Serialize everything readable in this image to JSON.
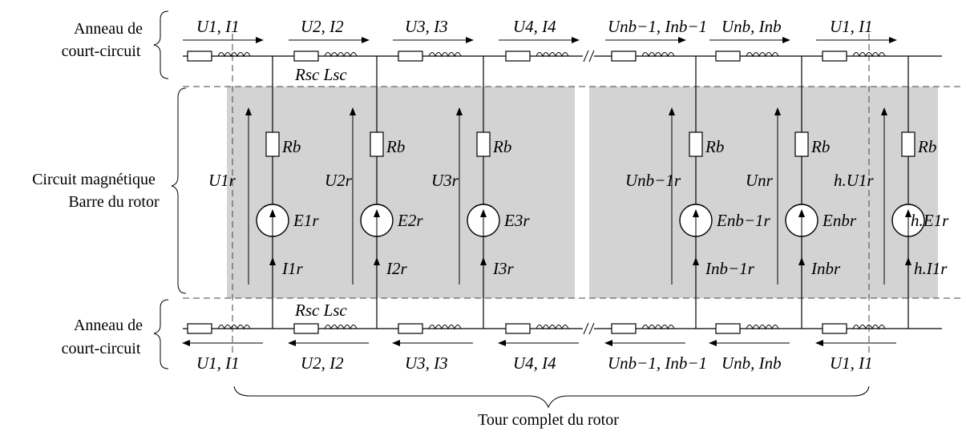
{
  "side_labels": {
    "top_ring_line1": "Anneau de",
    "top_ring_line2": "court-circuit",
    "core_line1": "Circuit magnétique",
    "core_line2": "Barre du rotor",
    "bottom_ring_line1": "Anneau de",
    "bottom_ring_line2": "court-circuit"
  },
  "bottom_caption": "Tour complet du rotor",
  "top_ring_labels": [
    "U1, I1",
    "U2, I2",
    "U3, I3",
    "U4, I4",
    "Unb−1, Inb−1",
    "Unb, Inb",
    "U1, I1"
  ],
  "bottom_ring_labels": [
    "U1, I1",
    "U2, I2",
    "U3, I3",
    "U4, I4",
    "Unb−1, Inb−1",
    "Unb, Inb",
    "U1, I1"
  ],
  "ring_element_labels": {
    "top": "Rsc Lsc",
    "bottom": "Rsc Lsc"
  },
  "bars": [
    {
      "r": "Rb",
      "u": "U1r",
      "e": "E1r",
      "i": "I1r"
    },
    {
      "r": "Rb",
      "u": "U2r",
      "e": "E2r",
      "i": "I2r"
    },
    {
      "r": "Rb",
      "u": "U3r",
      "e": "E3r",
      "i": "I3r"
    },
    {
      "r": "Rb",
      "u": "Unb−1r",
      "e": "Enb−1r",
      "i": "Inb−1r"
    },
    {
      "r": "Rb",
      "u": "Unr",
      "e": "Enbr",
      "i": "Inbr"
    },
    {
      "r": "Rb",
      "u": "h.U1r",
      "e": "h.E1r",
      "i": "h.I1r"
    }
  ],
  "colors": {
    "core_fill": "#d3d3d3",
    "line": "#000000",
    "background": "#ffffff"
  }
}
